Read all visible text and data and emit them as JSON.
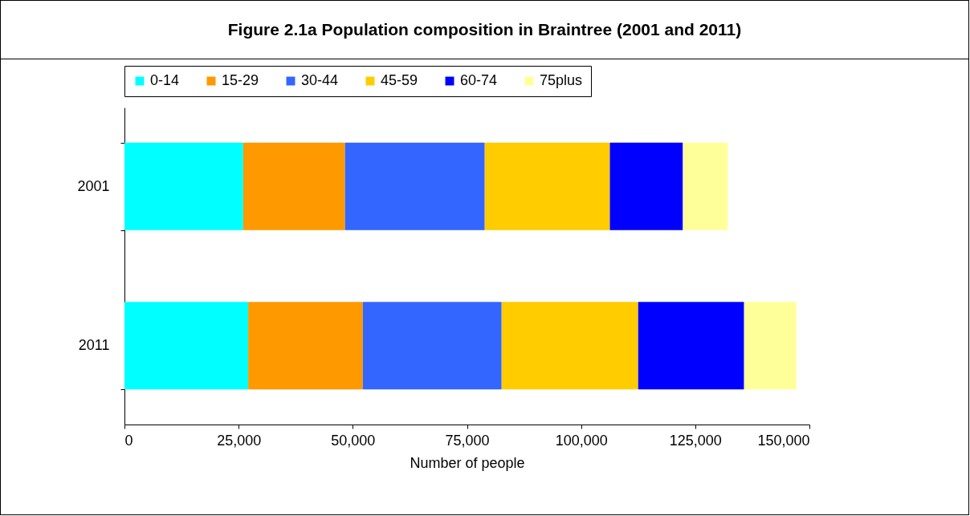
{
  "chart_data": {
    "type": "bar",
    "title": "Figure 2.1a Population composition in Braintree (2001 and 2011)",
    "xlabel": "Number of people",
    "orientation": "horizontal",
    "stacked": true,
    "categories": [
      "2001",
      "2011"
    ],
    "series": [
      {
        "name": "0-14",
        "color": "#00ffff",
        "values": [
          26000,
          27100
        ]
      },
      {
        "name": "15-29",
        "color": "#ff9900",
        "values": [
          22300,
          25100
        ]
      },
      {
        "name": "30-44",
        "color": "#3366ff",
        "values": [
          30600,
          30400
        ]
      },
      {
        "name": "45-59",
        "color": "#ffcc00",
        "values": [
          27400,
          29900
        ]
      },
      {
        "name": "60-74",
        "color": "#0000ff",
        "values": [
          16000,
          23200
        ]
      },
      {
        "name": "75plus",
        "color": "#ffff99",
        "values": [
          9800,
          11400
        ]
      }
    ],
    "xlim": [
      0,
      150000
    ],
    "xticks": [
      0,
      {
        "value": 25000,
        "label": "25,000"
      },
      {
        "value": 50000,
        "label": "50,000"
      },
      {
        "value": 75000,
        "label": "75,000"
      },
      {
        "value": 100000,
        "label": "100,000"
      },
      {
        "value": 125000,
        "label": "125,000"
      },
      {
        "value": 150000,
        "label": "150,000"
      }
    ],
    "legend": "top",
    "grid": false
  }
}
